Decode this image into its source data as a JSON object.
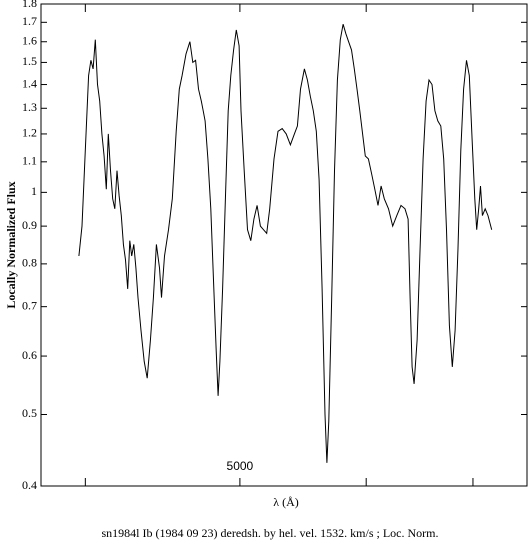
{
  "chart_data": {
    "type": "line",
    "ylabel": "Locally Normalized Flux",
    "xlabel": "λ (Å)",
    "caption": "sn1984l Ib (1984 09 23) deredsh. by hel. vel.  1532. km/s ;  Loc. Norm.",
    "log_x": true,
    "log_y": true,
    "xlim": [
      3752,
      7568
    ],
    "ylim": [
      0.4,
      1.8
    ],
    "xticks": [
      5000
    ],
    "xminor_ticks": [
      4000,
      6000,
      7000
    ],
    "yticks": [
      0.4,
      0.5,
      0.6,
      0.7,
      0.8,
      0.9,
      1,
      1.1,
      1.2,
      1.3,
      1.4,
      1.5,
      1.6,
      1.7,
      1.8
    ],
    "series": [
      {
        "color": "#000000",
        "x": [
          3963,
          3981,
          4000,
          4019,
          4032,
          4045,
          4058,
          4071,
          4084,
          4097,
          4110,
          4123,
          4135,
          4148,
          4161,
          4174,
          4187,
          4200,
          4213,
          4226,
          4239,
          4252,
          4265,
          4277,
          4290,
          4303,
          4316,
          4335,
          4355,
          4374,
          4394,
          4413,
          4432,
          4452,
          4465,
          4484,
          4510,
          4535,
          4561,
          4581,
          4600,
          4626,
          4652,
          4671,
          4690,
          4710,
          4729,
          4742,
          4755,
          4774,
          4794,
          4813,
          4832,
          4845,
          4858,
          4877,
          4897,
          4916,
          4935,
          4955,
          4974,
          4994,
          5008,
          5031,
          5055,
          5079,
          5102,
          5126,
          5150,
          5173,
          5197,
          5220,
          5252,
          5283,
          5315,
          5346,
          5378,
          5409,
          5433,
          5457,
          5488,
          5512,
          5535,
          5559,
          5583,
          5606,
          5630,
          5654,
          5669,
          5685,
          5709,
          5732,
          5756,
          5780,
          5803,
          5827,
          5850,
          5874,
          5898,
          5921,
          5945,
          5969,
          5992,
          6019,
          6047,
          6075,
          6103,
          6131,
          6159,
          6196,
          6234,
          6271,
          6309,
          6346,
          6374,
          6393,
          6411,
          6430,
          6458,
          6486,
          6514,
          6542,
          6570,
          6598,
          6626,
          6654,
          6682,
          6710,
          6738,
          6766,
          6794,
          6822,
          6850,
          6878,
          6906,
          6935,
          6963,
          6991,
          7019,
          7038,
          7058,
          7077,
          7096,
          7125,
          7154,
          7192
        ],
        "values": [
          0.82,
          0.9,
          1.14,
          1.44,
          1.51,
          1.47,
          1.61,
          1.4,
          1.33,
          1.2,
          1.12,
          1.01,
          1.2,
          1.07,
          0.98,
          0.95,
          1.07,
          0.99,
          0.93,
          0.85,
          0.81,
          0.74,
          0.86,
          0.82,
          0.85,
          0.79,
          0.72,
          0.65,
          0.59,
          0.56,
          0.63,
          0.72,
          0.85,
          0.79,
          0.72,
          0.82,
          0.89,
          0.98,
          1.21,
          1.38,
          1.44,
          1.54,
          1.6,
          1.5,
          1.51,
          1.38,
          1.33,
          1.29,
          1.25,
          1.11,
          0.95,
          0.76,
          0.61,
          0.53,
          0.59,
          0.74,
          0.99,
          1.29,
          1.44,
          1.56,
          1.66,
          1.58,
          1.29,
          1.07,
          0.89,
          0.86,
          0.92,
          0.96,
          0.9,
          0.89,
          0.88,
          0.95,
          1.11,
          1.21,
          1.22,
          1.2,
          1.16,
          1.2,
          1.23,
          1.38,
          1.47,
          1.42,
          1.35,
          1.29,
          1.21,
          1.04,
          0.74,
          0.5,
          0.43,
          0.49,
          0.72,
          1.07,
          1.42,
          1.61,
          1.69,
          1.64,
          1.6,
          1.56,
          1.47,
          1.38,
          1.29,
          1.2,
          1.12,
          1.11,
          1.06,
          1.01,
          0.96,
          1.02,
          0.98,
          0.95,
          0.9,
          0.93,
          0.96,
          0.95,
          0.92,
          0.72,
          0.58,
          0.55,
          0.63,
          0.84,
          1.11,
          1.33,
          1.42,
          1.4,
          1.29,
          1.25,
          1.23,
          1.11,
          0.89,
          0.66,
          0.58,
          0.65,
          0.84,
          1.14,
          1.38,
          1.51,
          1.44,
          1.18,
          0.98,
          0.89,
          0.95,
          1.02,
          0.93,
          0.95,
          0.93,
          0.89
        ]
      }
    ]
  }
}
